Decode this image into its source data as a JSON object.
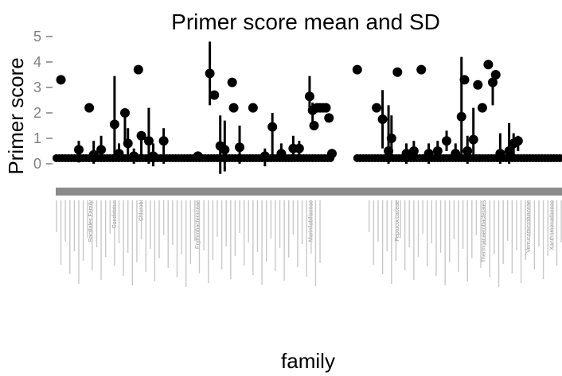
{
  "chart_data": {
    "type": "scatter",
    "title": "Primer score mean and SD",
    "xlabel": "family",
    "ylabel": "Primer score",
    "ylim": [
      -0.8,
      5.2
    ],
    "yticks": [
      0,
      1,
      2,
      3,
      4,
      5
    ],
    "grid": false,
    "legend": "none",
    "n_categories": 340,
    "marker_color": "#000000",
    "tick_color": "#7f7f7f",
    "categories_visible": [
      "Bacillales Family",
      "Candidatus",
      "Chlorobi",
      "Erythrobacteraceae",
      "Marinilabiliaceae",
      "Peptococcaceae",
      "Thermoanaerobacterales",
      "Verrucomicrobiaceae",
      "Xanthomonadaceae"
    ],
    "points": [
      {
        "x": 3,
        "mean": 3.3,
        "lo": 3.3,
        "hi": 3.3
      },
      {
        "x": 15,
        "mean": 0.55,
        "lo": 0.05,
        "hi": 0.9
      },
      {
        "x": 22,
        "mean": 2.2,
        "lo": 2.2,
        "hi": 2.2
      },
      {
        "x": 25,
        "mean": 0.35,
        "lo": 0.0,
        "hi": 0.9
      },
      {
        "x": 30,
        "mean": 0.55,
        "lo": 0.1,
        "hi": 1.1
      },
      {
        "x": 39,
        "mean": 1.55,
        "lo": 0.1,
        "hi": 3.45
      },
      {
        "x": 42,
        "mean": 0.4,
        "lo": 0.1,
        "hi": 0.8
      },
      {
        "x": 46,
        "mean": 2.0,
        "lo": 0.8,
        "hi": 2.0
      },
      {
        "x": 48,
        "mean": 0.8,
        "lo": 0.1,
        "hi": 1.4
      },
      {
        "x": 52,
        "mean": 0.3,
        "lo": 0.0,
        "hi": 0.6
      },
      {
        "x": 55,
        "mean": 3.7,
        "lo": 3.7,
        "hi": 3.7
      },
      {
        "x": 57,
        "mean": 1.1,
        "lo": 0.3,
        "hi": 1.1
      },
      {
        "x": 62,
        "mean": 0.9,
        "lo": 0.0,
        "hi": 2.2
      },
      {
        "x": 65,
        "mean": 0.3,
        "lo": -0.1,
        "hi": 0.8
      },
      {
        "x": 72,
        "mean": 0.9,
        "lo": 0.0,
        "hi": 1.4
      },
      {
        "x": 95,
        "mean": 0.3,
        "lo": 0.3,
        "hi": 0.3
      },
      {
        "x": 103,
        "mean": 3.55,
        "lo": 2.3,
        "hi": 4.8
      },
      {
        "x": 106,
        "mean": 2.7,
        "lo": 2.7,
        "hi": 2.7
      },
      {
        "x": 110,
        "mean": 0.7,
        "lo": -0.4,
        "hi": 1.9
      },
      {
        "x": 113,
        "mean": 0.55,
        "lo": -0.3,
        "hi": 1.7
      },
      {
        "x": 118,
        "mean": 3.2,
        "lo": 3.2,
        "hi": 3.2
      },
      {
        "x": 119,
        "mean": 2.2,
        "lo": 2.2,
        "hi": 2.2
      },
      {
        "x": 123,
        "mean": 0.65,
        "lo": 0.0,
        "hi": 1.5
      },
      {
        "x": 132,
        "mean": 2.2,
        "lo": 2.2,
        "hi": 2.2
      },
      {
        "x": 140,
        "mean": 0.3,
        "lo": -0.1,
        "hi": 0.6
      },
      {
        "x": 145,
        "mean": 1.45,
        "lo": 0.1,
        "hi": 2.0
      },
      {
        "x": 151,
        "mean": 0.4,
        "lo": 0.1,
        "hi": 0.8
      },
      {
        "x": 159,
        "mean": 0.6,
        "lo": 0.2,
        "hi": 1.1
      },
      {
        "x": 163,
        "mean": 0.6,
        "lo": 0.2,
        "hi": 0.9
      },
      {
        "x": 170,
        "mean": 2.65,
        "lo": 2.0,
        "hi": 3.45
      },
      {
        "x": 172,
        "mean": 2.1,
        "lo": 1.6,
        "hi": 2.4
      },
      {
        "x": 173,
        "mean": 1.5,
        "lo": 1.5,
        "hi": 1.5
      },
      {
        "x": 175,
        "mean": 2.2,
        "lo": 2.2,
        "hi": 2.2
      },
      {
        "x": 177,
        "mean": 2.2,
        "lo": 2.2,
        "hi": 2.2
      },
      {
        "x": 179,
        "mean": 2.2,
        "lo": 2.2,
        "hi": 2.2
      },
      {
        "x": 181,
        "mean": 2.2,
        "lo": 2.2,
        "hi": 2.2
      },
      {
        "x": 183,
        "mean": 1.8,
        "lo": 1.8,
        "hi": 1.8
      },
      {
        "x": 185,
        "mean": 0.4,
        "lo": 0.4,
        "hi": 0.4
      },
      {
        "x": 202,
        "mean": 3.7,
        "lo": 3.7,
        "hi": 3.7
      },
      {
        "x": 215,
        "mean": 2.2,
        "lo": 2.2,
        "hi": 2.2
      },
      {
        "x": 219,
        "mean": 1.75,
        "lo": 0.6,
        "hi": 2.9
      },
      {
        "x": 223,
        "mean": 0.5,
        "lo": 0.0,
        "hi": 2.3
      },
      {
        "x": 225,
        "mean": 1.0,
        "lo": 0.2,
        "hi": 1.9
      },
      {
        "x": 229,
        "mean": 3.6,
        "lo": 3.6,
        "hi": 3.6
      },
      {
        "x": 235,
        "mean": 0.4,
        "lo": 0.0,
        "hi": 0.8
      },
      {
        "x": 240,
        "mean": 0.5,
        "lo": 0.1,
        "hi": 0.9
      },
      {
        "x": 245,
        "mean": 3.7,
        "lo": 3.7,
        "hi": 3.7
      },
      {
        "x": 250,
        "mean": 0.4,
        "lo": 0.0,
        "hi": 0.8
      },
      {
        "x": 256,
        "mean": 0.5,
        "lo": 0.1,
        "hi": 0.9
      },
      {
        "x": 262,
        "mean": 0.9,
        "lo": 0.5,
        "hi": 1.3
      },
      {
        "x": 268,
        "mean": 0.4,
        "lo": 0.1,
        "hi": 0.8
      },
      {
        "x": 272,
        "mean": 1.85,
        "lo": 0.2,
        "hi": 4.2
      },
      {
        "x": 274,
        "mean": 3.3,
        "lo": 3.3,
        "hi": 3.3
      },
      {
        "x": 276,
        "mean": 0.5,
        "lo": 0.0,
        "hi": 1.1
      },
      {
        "x": 280,
        "mean": 0.95,
        "lo": 0.1,
        "hi": 2.2
      },
      {
        "x": 283,
        "mean": 3.1,
        "lo": 3.1,
        "hi": 3.1
      },
      {
        "x": 286,
        "mean": 2.2,
        "lo": 2.2,
        "hi": 2.2
      },
      {
        "x": 290,
        "mean": 3.9,
        "lo": 3.9,
        "hi": 3.9
      },
      {
        "x": 293,
        "mean": 3.2,
        "lo": 2.3,
        "hi": 3.5
      },
      {
        "x": 295,
        "mean": 3.5,
        "lo": 3.5,
        "hi": 3.5
      },
      {
        "x": 298,
        "mean": 0.4,
        "lo": 0.0,
        "hi": 1.2
      },
      {
        "x": 304,
        "mean": 0.5,
        "lo": 0.0,
        "hi": 1.6
      },
      {
        "x": 307,
        "mean": 0.8,
        "lo": 0.3,
        "hi": 1.2
      },
      {
        "x": 310,
        "mean": 0.9,
        "lo": 0.5,
        "hi": 1.1
      }
    ]
  }
}
